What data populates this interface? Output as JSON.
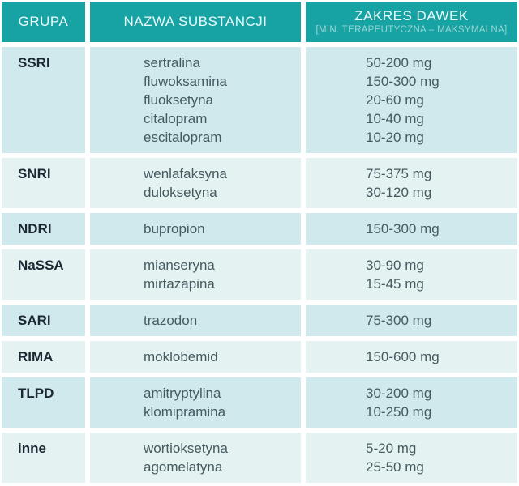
{
  "chart_data": {
    "type": "table",
    "title": "",
    "columns": [
      {
        "id": "group",
        "label": "GRUPA"
      },
      {
        "id": "substance",
        "label": "NAZWA SUBSTANCJI"
      },
      {
        "id": "dose",
        "label": "ZAKRES DAWEK",
        "sublabel": "[MIN. TERAPEUTYCZNA – MAKSYMALNA]"
      }
    ],
    "rows": [
      {
        "group": "SSRI",
        "entries": [
          {
            "substance": "sertralina",
            "dose": "50-200 mg"
          },
          {
            "substance": "fluwoksamina",
            "dose": "150-300 mg"
          },
          {
            "substance": "fluoksetyna",
            "dose": "20-60 mg"
          },
          {
            "substance": "citalopram",
            "dose": "10-40 mg"
          },
          {
            "substance": "escitalopram",
            "dose": "10-20 mg"
          }
        ]
      },
      {
        "group": "SNRI",
        "entries": [
          {
            "substance": "wenlafaksyna",
            "dose": "75-375 mg"
          },
          {
            "substance": "duloksetyna",
            "dose": "30-120 mg"
          }
        ]
      },
      {
        "group": "NDRI",
        "entries": [
          {
            "substance": "bupropion",
            "dose": "150-300 mg"
          }
        ]
      },
      {
        "group": "NaSSA",
        "entries": [
          {
            "substance": "mianseryna",
            "dose": "30-90 mg"
          },
          {
            "substance": "mirtazapina",
            "dose": "15-45 mg"
          }
        ]
      },
      {
        "group": "SARI",
        "entries": [
          {
            "substance": "trazodon",
            "dose": "75-300 mg"
          }
        ]
      },
      {
        "group": "RIMA",
        "entries": [
          {
            "substance": "moklobemid",
            "dose": "150-600 mg"
          }
        ]
      },
      {
        "group": "TLPD",
        "entries": [
          {
            "substance": "amitryptylina",
            "dose": "30-200 mg"
          },
          {
            "substance": "klomipramina",
            "dose": "10-250 mg"
          }
        ]
      },
      {
        "group": "inne",
        "entries": [
          {
            "substance": "wortioksetyna",
            "dose": "5-20 mg"
          },
          {
            "substance": "agomelatyna",
            "dose": "25-50 mg"
          }
        ]
      }
    ]
  },
  "colors": {
    "header_bg": "#17a3a3",
    "row_bg_dark": "#cfe9ec",
    "row_bg_light": "#e4f2f1",
    "group_text": "#1c2733",
    "cell_text": "#465a60",
    "header_text": "#eafafa"
  }
}
